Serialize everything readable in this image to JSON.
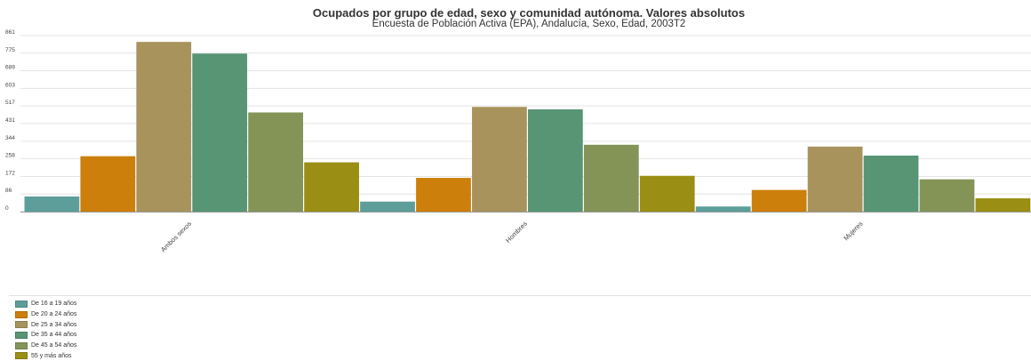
{
  "chart_data": {
    "type": "bar",
    "title": "Ocupados por grupo de edad, sexo y comunidad autónoma. Valores absolutos",
    "subtitle": "Encuesta de Población Activa (EPA), Andalucía, Sexo, Edad, 2003T2",
    "categories": [
      "Ambos sexos",
      "Hombres",
      "Mujeres"
    ],
    "yticks": [
      "0",
      "86",
      "172",
      "258",
      "344",
      "431",
      "517",
      "603",
      "689",
      "775",
      "861"
    ],
    "ylim": [
      0,
      861
    ],
    "grid": true,
    "legend_position": "bottom-left",
    "series": [
      {
        "name": "De 16 a 19 años",
        "color": "#5d9e9a",
        "values": [
          74,
          49,
          25
        ]
      },
      {
        "name": "De 20 a 24 años",
        "color": "#cc7f0a",
        "values": [
          271,
          165,
          106
        ]
      },
      {
        "name": "De 25 a 34 años",
        "color": "#a8935d",
        "values": [
          830,
          512,
          318
        ]
      },
      {
        "name": "De 35 a 44 años",
        "color": "#579574",
        "values": [
          773,
          500,
          274
        ]
      },
      {
        "name": "De 45 a 54 años",
        "color": "#849457",
        "values": [
          485,
          327,
          158
        ]
      },
      {
        "name": "55 y más años",
        "color": "#9a8e14",
        "values": [
          241,
          175,
          65
        ]
      }
    ]
  }
}
